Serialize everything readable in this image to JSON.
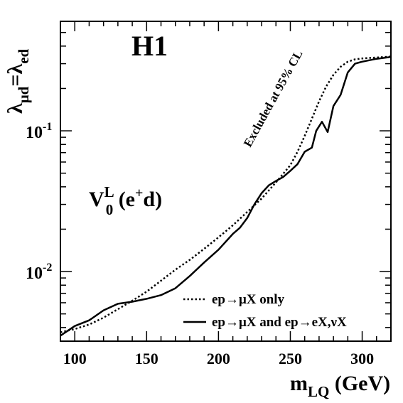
{
  "chart_data": {
    "type": "line",
    "experiment_label": "H1",
    "ylabel": {
      "lambda": "λ",
      "sub1": "μd",
      "eq": "=",
      "sub2": "ed"
    },
    "xlabel": {
      "m": "m",
      "sub": "LQ",
      "unit": " (GeV)"
    },
    "annotation": "Excluded at 95% CL",
    "process_label": {
      "v": "V",
      "sub": "0",
      "sup": "L",
      "rest_open": " (e",
      "sup2": "+",
      "rest_close": "d)"
    },
    "x_ticks": [
      100,
      150,
      200,
      250,
      300
    ],
    "x_tick_labels": [
      "100",
      "150",
      "200",
      "250",
      "300"
    ],
    "y_tick_labels": [
      {
        "value": 0.01,
        "base": "10",
        "exp": "-2"
      },
      {
        "value": 0.1,
        "base": "10",
        "exp": "-1"
      }
    ],
    "xlim": [
      90,
      320
    ],
    "ylim": [
      0.0032,
      0.6
    ],
    "yscale": "log",
    "grid": false,
    "legend_position": "bottom-right",
    "series": [
      {
        "name": "ep→μX only",
        "style": "dotted",
        "color": "#000000",
        "x": [
          90,
          100,
          110,
          120,
          130,
          140,
          150,
          160,
          170,
          180,
          190,
          200,
          210,
          220,
          230,
          240,
          250,
          255,
          260,
          265,
          270,
          275,
          280,
          285,
          290,
          295,
          300,
          310,
          320
        ],
        "y": [
          0.0037,
          0.0039,
          0.0042,
          0.0047,
          0.0054,
          0.0062,
          0.0072,
          0.0086,
          0.0103,
          0.0121,
          0.0145,
          0.0175,
          0.0213,
          0.0265,
          0.033,
          0.043,
          0.057,
          0.071,
          0.092,
          0.122,
          0.162,
          0.207,
          0.25,
          0.285,
          0.31,
          0.322,
          0.327,
          0.332,
          0.337
        ]
      },
      {
        "name": "ep→μX and ep→eX,νX",
        "style": "solid",
        "color": "#000000",
        "x": [
          90,
          100,
          110,
          120,
          130,
          140,
          150,
          160,
          170,
          180,
          190,
          200,
          210,
          215,
          220,
          225,
          230,
          235,
          240,
          245,
          250,
          255,
          260,
          265,
          268,
          272,
          276,
          280,
          285,
          290,
          295,
          300,
          310,
          320
        ],
        "y": [
          0.0035,
          0.0041,
          0.0045,
          0.0053,
          0.0059,
          0.0061,
          0.0064,
          0.0068,
          0.0076,
          0.0093,
          0.0116,
          0.0143,
          0.0185,
          0.0205,
          0.024,
          0.03,
          0.036,
          0.041,
          0.044,
          0.047,
          0.052,
          0.058,
          0.071,
          0.076,
          0.1,
          0.116,
          0.098,
          0.15,
          0.18,
          0.26,
          0.3,
          0.31,
          0.325,
          0.335
        ]
      }
    ]
  }
}
